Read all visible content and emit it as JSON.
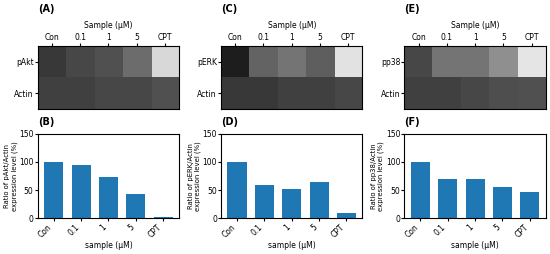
{
  "chart_data": [
    {
      "type": "heatmap",
      "title": "(A)",
      "xlabel": "Sample (μM)",
      "categories": [
        "Con",
        "0.1",
        "1",
        "5",
        "CPT"
      ],
      "rows": [
        "pAkt",
        "Actin"
      ],
      "cells": [
        [
          0.82,
          0.78,
          0.75,
          0.65,
          0.25
        ],
        [
          0.8,
          0.8,
          0.78,
          0.78,
          0.75
        ]
      ],
      "color_range": [
        0,
        1
      ]
    },
    {
      "type": "heatmap",
      "title": "(C)",
      "xlabel": "Sample (μM)",
      "categories": [
        "Con",
        "0.1",
        "1",
        "5",
        "CPT"
      ],
      "rows": [
        "pERK",
        "Actin"
      ],
      "cells": [
        [
          0.9,
          0.68,
          0.62,
          0.7,
          0.2
        ],
        [
          0.82,
          0.82,
          0.8,
          0.8,
          0.78
        ]
      ],
      "color_range": [
        0,
        1
      ]
    },
    {
      "type": "heatmap",
      "title": "(E)",
      "xlabel": "Sample (μM)",
      "categories": [
        "Con",
        "0.1",
        "1",
        "5",
        "CPT"
      ],
      "rows": [
        "pp38",
        "Actin"
      ],
      "cells": [
        [
          0.78,
          0.62,
          0.62,
          0.52,
          0.18
        ],
        [
          0.8,
          0.8,
          0.78,
          0.76,
          0.75
        ]
      ],
      "color_range": [
        0,
        1
      ]
    },
    {
      "type": "bar",
      "title": "(B)",
      "categories": [
        "Con",
        "0.1",
        "1",
        "5",
        "CPT"
      ],
      "values": [
        100,
        95,
        73,
        43,
        2
      ],
      "xlabel": "sample (μM)",
      "ylabel": "Ratio of pAkt/Actin\nexpression level (%)",
      "ylim": [
        0,
        150
      ],
      "yticks": [
        0,
        50,
        100,
        150
      ]
    },
    {
      "type": "bar",
      "title": "(D)",
      "categories": [
        "Con",
        "0.1",
        "1",
        "5",
        "CPT"
      ],
      "values": [
        100,
        60,
        53,
        65,
        10
      ],
      "xlabel": "sample (μM)",
      "ylabel": "Ratio of pERK/Actin\nexpression level (%)",
      "ylim": [
        0,
        150
      ],
      "yticks": [
        0,
        50,
        100,
        150
      ]
    },
    {
      "type": "bar",
      "title": "(F)",
      "categories": [
        "Con",
        "0.1",
        "1",
        "5",
        "CPT"
      ],
      "values": [
        100,
        70,
        70,
        55,
        47
      ],
      "xlabel": "sample (μM)",
      "ylabel": "Ratio of pp38/Actin\nexpression level (%)",
      "ylim": [
        0,
        150
      ],
      "yticks": [
        0,
        50,
        100,
        150
      ]
    }
  ]
}
